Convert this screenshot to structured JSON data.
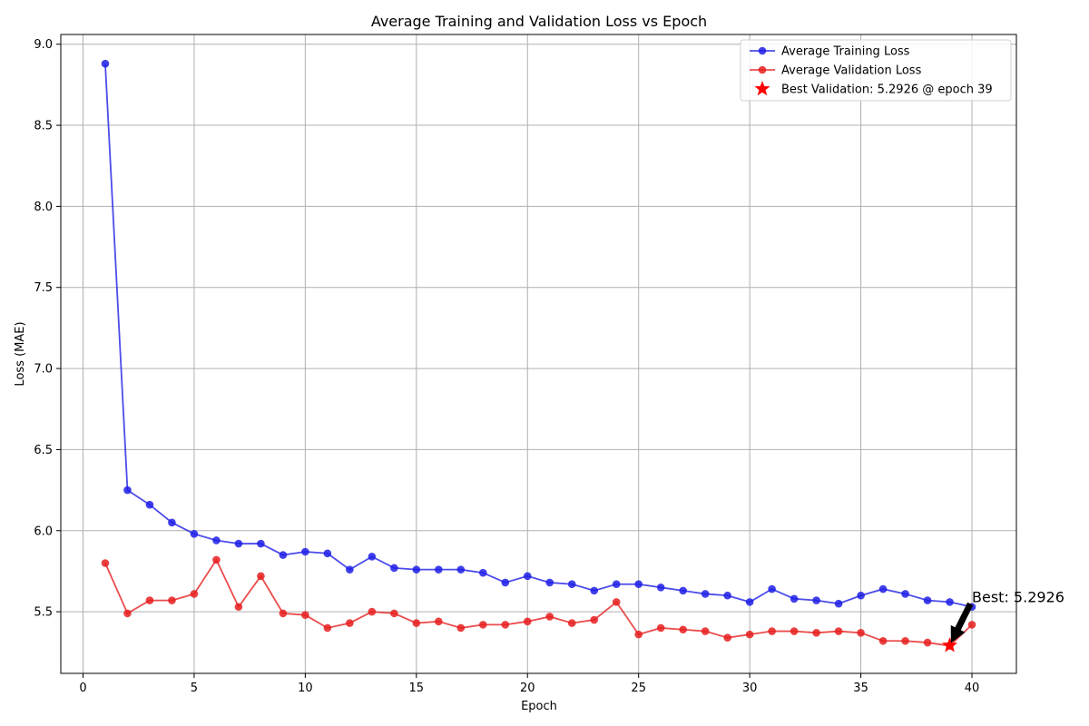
{
  "chart_data": {
    "type": "line",
    "title": "Average Training and Validation Loss vs Epoch",
    "xlabel": "Epoch",
    "ylabel": "Loss (MAE)",
    "xlim": [
      -1,
      42
    ],
    "ylim": [
      5.12,
      9.06
    ],
    "xticks": [
      0,
      5,
      10,
      15,
      20,
      25,
      30,
      35,
      40
    ],
    "yticks": [
      5.5,
      6.0,
      6.5,
      7.0,
      7.5,
      8.0,
      8.5,
      9.0
    ],
    "xtick_labels": [
      "0",
      "5",
      "10",
      "15",
      "20",
      "25",
      "30",
      "35",
      "40"
    ],
    "ytick_labels": [
      "5.5",
      "6.0",
      "6.5",
      "7.0",
      "7.5",
      "8.0",
      "8.5",
      "9.0"
    ],
    "grid": true,
    "legend_position": "top-right",
    "x": [
      1,
      2,
      3,
      4,
      5,
      6,
      7,
      8,
      9,
      10,
      11,
      12,
      13,
      14,
      15,
      16,
      17,
      18,
      19,
      20,
      21,
      22,
      23,
      24,
      25,
      26,
      27,
      28,
      29,
      30,
      31,
      32,
      33,
      34,
      35,
      36,
      37,
      38,
      39,
      40
    ],
    "series": [
      {
        "name": "Average Training Loss",
        "color": "#1f1fe6",
        "values": [
          8.88,
          6.25,
          6.16,
          6.05,
          5.98,
          5.94,
          5.92,
          5.92,
          5.85,
          5.87,
          5.86,
          5.76,
          5.84,
          5.77,
          5.76,
          5.76,
          5.76,
          5.74,
          5.68,
          5.72,
          5.68,
          5.67,
          5.63,
          5.67,
          5.67,
          5.65,
          5.63,
          5.61,
          5.6,
          5.56,
          5.64,
          5.58,
          5.57,
          5.55,
          5.6,
          5.64,
          5.61,
          5.57,
          5.56,
          5.53
        ]
      },
      {
        "name": "Average Validation Loss",
        "color": "#e61f1f",
        "values": [
          5.8,
          5.49,
          5.57,
          5.57,
          5.61,
          5.82,
          5.53,
          5.72,
          5.49,
          5.48,
          5.4,
          5.43,
          5.5,
          5.49,
          5.43,
          5.44,
          5.4,
          5.42,
          5.42,
          5.44,
          5.47,
          5.43,
          5.45,
          5.56,
          5.36,
          5.4,
          5.39,
          5.38,
          5.34,
          5.36,
          5.38,
          5.38,
          5.37,
          5.38,
          5.37,
          5.32,
          5.32,
          5.31,
          5.29,
          5.42
        ]
      }
    ],
    "best": {
      "legend_label": "Best Validation: 5.2926 @ epoch 39",
      "epoch": 39,
      "value": 5.2926,
      "annotation": "Best: 5.2926",
      "annotation_text_at": [
        40,
        5.53
      ],
      "color": "#ff0000"
    }
  }
}
